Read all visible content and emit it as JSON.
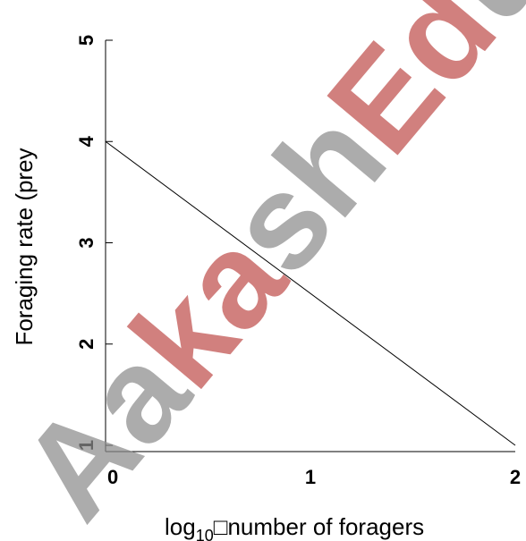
{
  "chart_data": {
    "type": "line",
    "title": "",
    "xlabel": {
      "prefix": "log",
      "subscript": "10",
      "glyph": "□",
      "rest": "number of foragers"
    },
    "ylabel": "Foraging rate (prey",
    "xlim": [
      0,
      2
    ],
    "ylim": [
      0.5,
      5
    ],
    "xticks": [
      "0",
      "1",
      "2"
    ],
    "yticks": [
      "1",
      "2",
      "3",
      "4",
      "5"
    ],
    "grid": false,
    "series": [
      {
        "x": [
          0,
          2
        ],
        "y": [
          4,
          1
        ]
      }
    ]
  },
  "watermark": {
    "text": "AakashEducation",
    "color_grey": "#8c8c8c",
    "color_red": "#c0504d"
  }
}
